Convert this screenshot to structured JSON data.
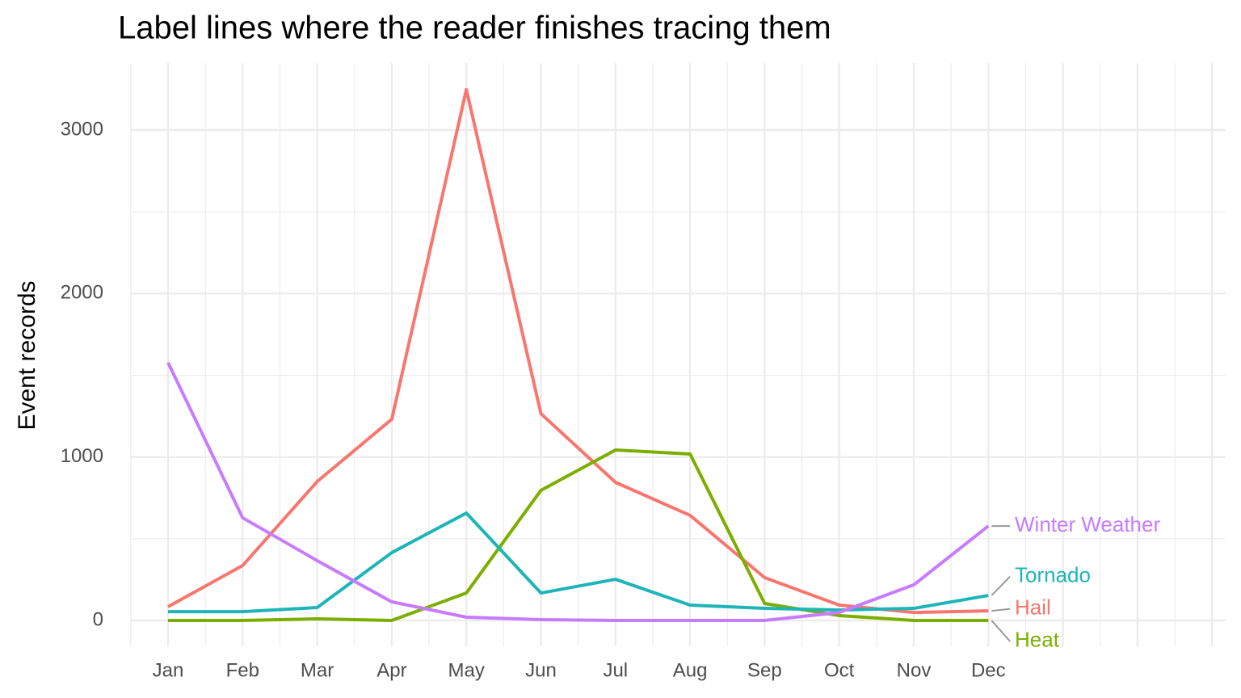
{
  "chart_data": {
    "type": "line",
    "title": "Label lines where the reader finishes tracing them",
    "y_label": "Event records",
    "categories": [
      "Jan",
      "Feb",
      "Mar",
      "Apr",
      "May",
      "Jun",
      "Jul",
      "Aug",
      "Sep",
      "Oct",
      "Nov",
      "Dec"
    ],
    "series": [
      {
        "name": "Hail",
        "color": "#F8766D",
        "values": [
          84,
          336,
          850,
          1231,
          3248,
          1265,
          845,
          643,
          262,
          94,
          49,
          59
        ]
      },
      {
        "name": "Heat",
        "color": "#7CAE00",
        "values": [
          0,
          0,
          10,
          0,
          168,
          796,
          1043,
          1018,
          104,
          30,
          0,
          0
        ]
      },
      {
        "name": "Tornado",
        "color": "#1DB5B8",
        "values": [
          54,
          54,
          79,
          415,
          657,
          168,
          252,
          94,
          74,
          64,
          74,
          153
        ]
      },
      {
        "name": "Winter Weather",
        "color": "#C77CFF",
        "values": [
          1577,
          628,
          366,
          114,
          20,
          5,
          0,
          0,
          0,
          49,
          218,
          578
        ]
      }
    ],
    "ylim": [
      -158,
      3410
    ],
    "yticks": [
      0,
      1000,
      2000,
      3000
    ],
    "grid": true,
    "legend": "line-end"
  }
}
